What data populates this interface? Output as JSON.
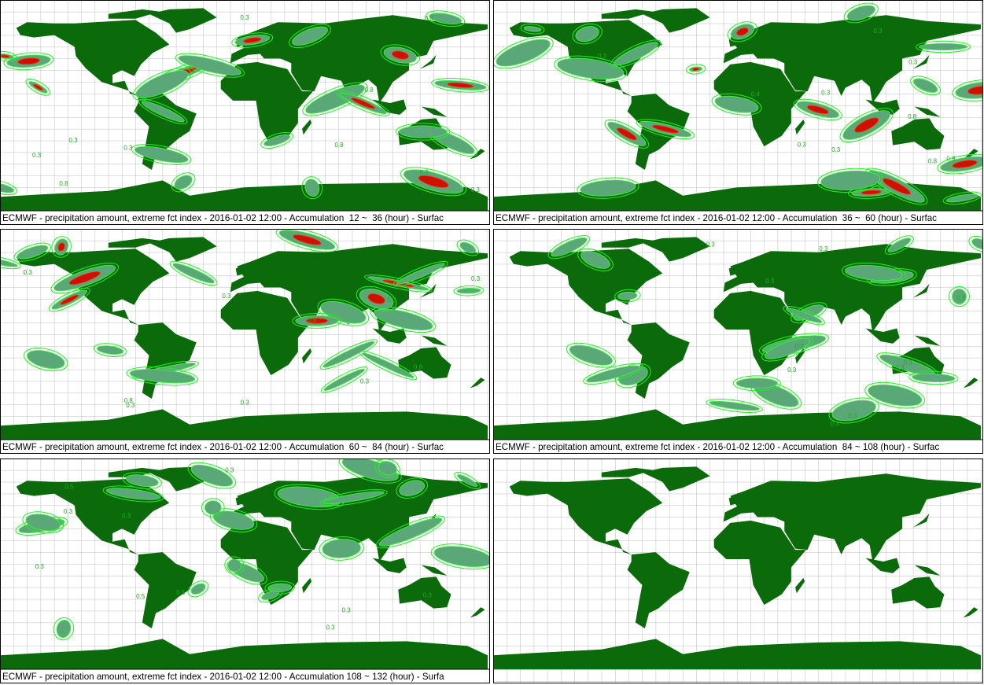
{
  "panels": [
    {
      "caption": "ECMWF - precipitation amount, extreme fct index - 2016-01-02 12:00 - Accumulation  12 ~  36 (hour) - Surfac",
      "contour_labels": [
        "0.3",
        "0.8",
        "0.3",
        "0.8",
        "0.3",
        "0.8",
        "0.3",
        "0.3",
        "0.8",
        "0.3"
      ]
    },
    {
      "caption": "ECMWF - precipitation amount, extreme fct index - 2016-01-02 12:00 - Accumulation  36 ~  60 (hour) - Surfac",
      "contour_labels": [
        "0.3",
        "0.8",
        "0.3",
        "0.3",
        "0.8",
        "0.3",
        "0.4",
        "0.8",
        "0.3",
        "0.3"
      ]
    },
    {
      "caption": "ECMWF - precipitation amount, extreme fct index - 2016-01-02 12:00 - Accumulation  60 ~  84 (hour) - Surfac",
      "contour_labels": [
        "0.3",
        "0.8",
        "0.3",
        "0.3",
        "0.8",
        "0.3",
        "0.3",
        "0.3",
        "0.8",
        "0.3"
      ]
    },
    {
      "caption": "ECMWF - precipitation amount, extreme fct index - 2016-01-02 12:00 - Accumulation  84 ~ 108 (hour) - Surfac",
      "contour_labels": [
        "0.3",
        "0.3",
        "0.3",
        "0.3",
        "0.3",
        "0.3",
        "0.3",
        "0.3",
        "0.3",
        "0.3"
      ]
    },
    {
      "caption": "ECMWF - precipitation amount, extreme fct index - 2016-01-02 12:00 - Accumulation 108 ~ 132 (hour) - Surfa",
      "contour_labels": [
        "0.3",
        "0.3",
        "0.5",
        "0.3",
        "0.5",
        "0.3",
        "0.3",
        "0.5",
        "0.3",
        "0.3"
      ]
    },
    {
      "caption": null,
      "contour_labels": []
    }
  ]
}
